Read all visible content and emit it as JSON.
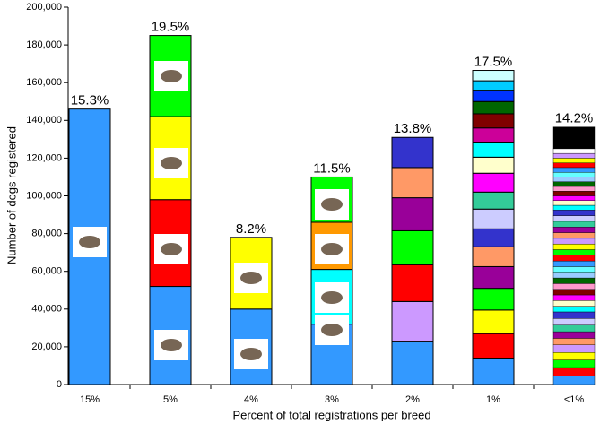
{
  "chart_data": {
    "type": "stacked-bar",
    "x_label": "Percent of total registrations per breed",
    "y_label": "Number of dogs registered",
    "ylim": [
      0,
      200000
    ],
    "yticks": [
      0,
      {
        "value": 20000,
        "label": "20,000"
      },
      {
        "value": 40000,
        "label": "40,000"
      },
      {
        "value": 60000,
        "label": "60,000"
      },
      {
        "value": 80000,
        "label": "80,000"
      },
      {
        "value": 100000,
        "label": "100,000"
      },
      {
        "value": 120000,
        "label": "120,000"
      },
      {
        "value": 140000,
        "label": "140,000"
      },
      {
        "value": 160000,
        "label": "160,000"
      },
      {
        "value": 180000,
        "label": "180,000"
      },
      {
        "value": 200000,
        "label": "200,000"
      }
    ],
    "bars": [
      {
        "category": "15%",
        "label": "15.3%",
        "values": [
          146000
        ],
        "colors": [
          "#3399ff"
        ]
      },
      {
        "category": "5%",
        "label": "19.5%",
        "values": [
          52000,
          46000,
          44000,
          43000
        ],
        "colors": [
          "#3399ff",
          "#ff0000",
          "#ffff00",
          "#00ff00"
        ]
      },
      {
        "category": "4%",
        "label": "8.2%",
        "values": [
          40000,
          38000
        ],
        "colors": [
          "#3399ff",
          "#ffff00"
        ]
      },
      {
        "category": "3%",
        "label": "11.5%",
        "values": [
          32000,
          29000,
          25000,
          24000
        ],
        "colors": [
          "#3399ff",
          "#00ffff",
          "#ff9900",
          "#00ff00"
        ]
      },
      {
        "category": "2%",
        "label": "13.8%",
        "values": [
          23000,
          21000,
          19500,
          18000,
          17500,
          16000,
          16000
        ],
        "colors": [
          "#3399ff",
          "#cc99ff",
          "#ff0000",
          "#00ff00",
          "#990099",
          "#ff9966",
          "#3333cc"
        ]
      },
      {
        "category": "1%",
        "label": "17.5%",
        "values": [
          14000,
          13000,
          12500,
          11500,
          11500,
          10500,
          9500,
          10500,
          9000,
          10000,
          8500,
          8000,
          7500,
          7500,
          6500,
          6000,
          5000,
          5500
        ],
        "colors": [
          "#3399ff",
          "#ff0000",
          "#ffff00",
          "#00ff00",
          "#990099",
          "#ff9966",
          "#3333cc",
          "#ccccff",
          "#33cc99",
          "#ff00ff",
          "#ffffcc",
          "#00ffff",
          "#cc0099",
          "#800000",
          "#006600",
          "#0033ff",
          "#00ccff",
          "#ccffff"
        ]
      },
      {
        "category": "<1%",
        "label": "14.2%",
        "values": [
          4500,
          4500,
          4000,
          4000,
          4000,
          3500,
          3500,
          3500,
          3500,
          3500,
          3000,
          3000,
          3000,
          3000,
          3000,
          3000,
          3000,
          3000,
          3000,
          3000,
          3000,
          3000,
          3000,
          3000,
          3000,
          3000,
          3000,
          3000,
          2500,
          2500,
          2500,
          2500,
          2500,
          2500,
          2500,
          2500,
          2500,
          2500,
          2500,
          2500,
          2500,
          11500
        ],
        "colors": [
          "#3399ff",
          "#ff0000",
          "#00ff00",
          "#ffff00",
          "#cc99ff",
          "#ff9966",
          "#990099",
          "#33cc99",
          "#ccccff",
          "#3333cc",
          "#00ffff",
          "#ffffcc",
          "#ff00ff",
          "#800000",
          "#ff99cc",
          "#006600",
          "#99ccff",
          "#66ffff",
          "#3399ff",
          "#ff0000",
          "#00ff00",
          "#ffff00",
          "#cc99ff",
          "#ff9966",
          "#990099",
          "#33cc99",
          "#ccccff",
          "#3333cc",
          "#00ffff",
          "#ffffcc",
          "#ff00ff",
          "#800000",
          "#ff99cc",
          "#006600",
          "#99ccff",
          "#66ffff",
          "#3399ff",
          "#ff0000",
          "#ffff00",
          "#cc99ff",
          "#ffffff",
          "#000000"
        ]
      }
    ]
  }
}
